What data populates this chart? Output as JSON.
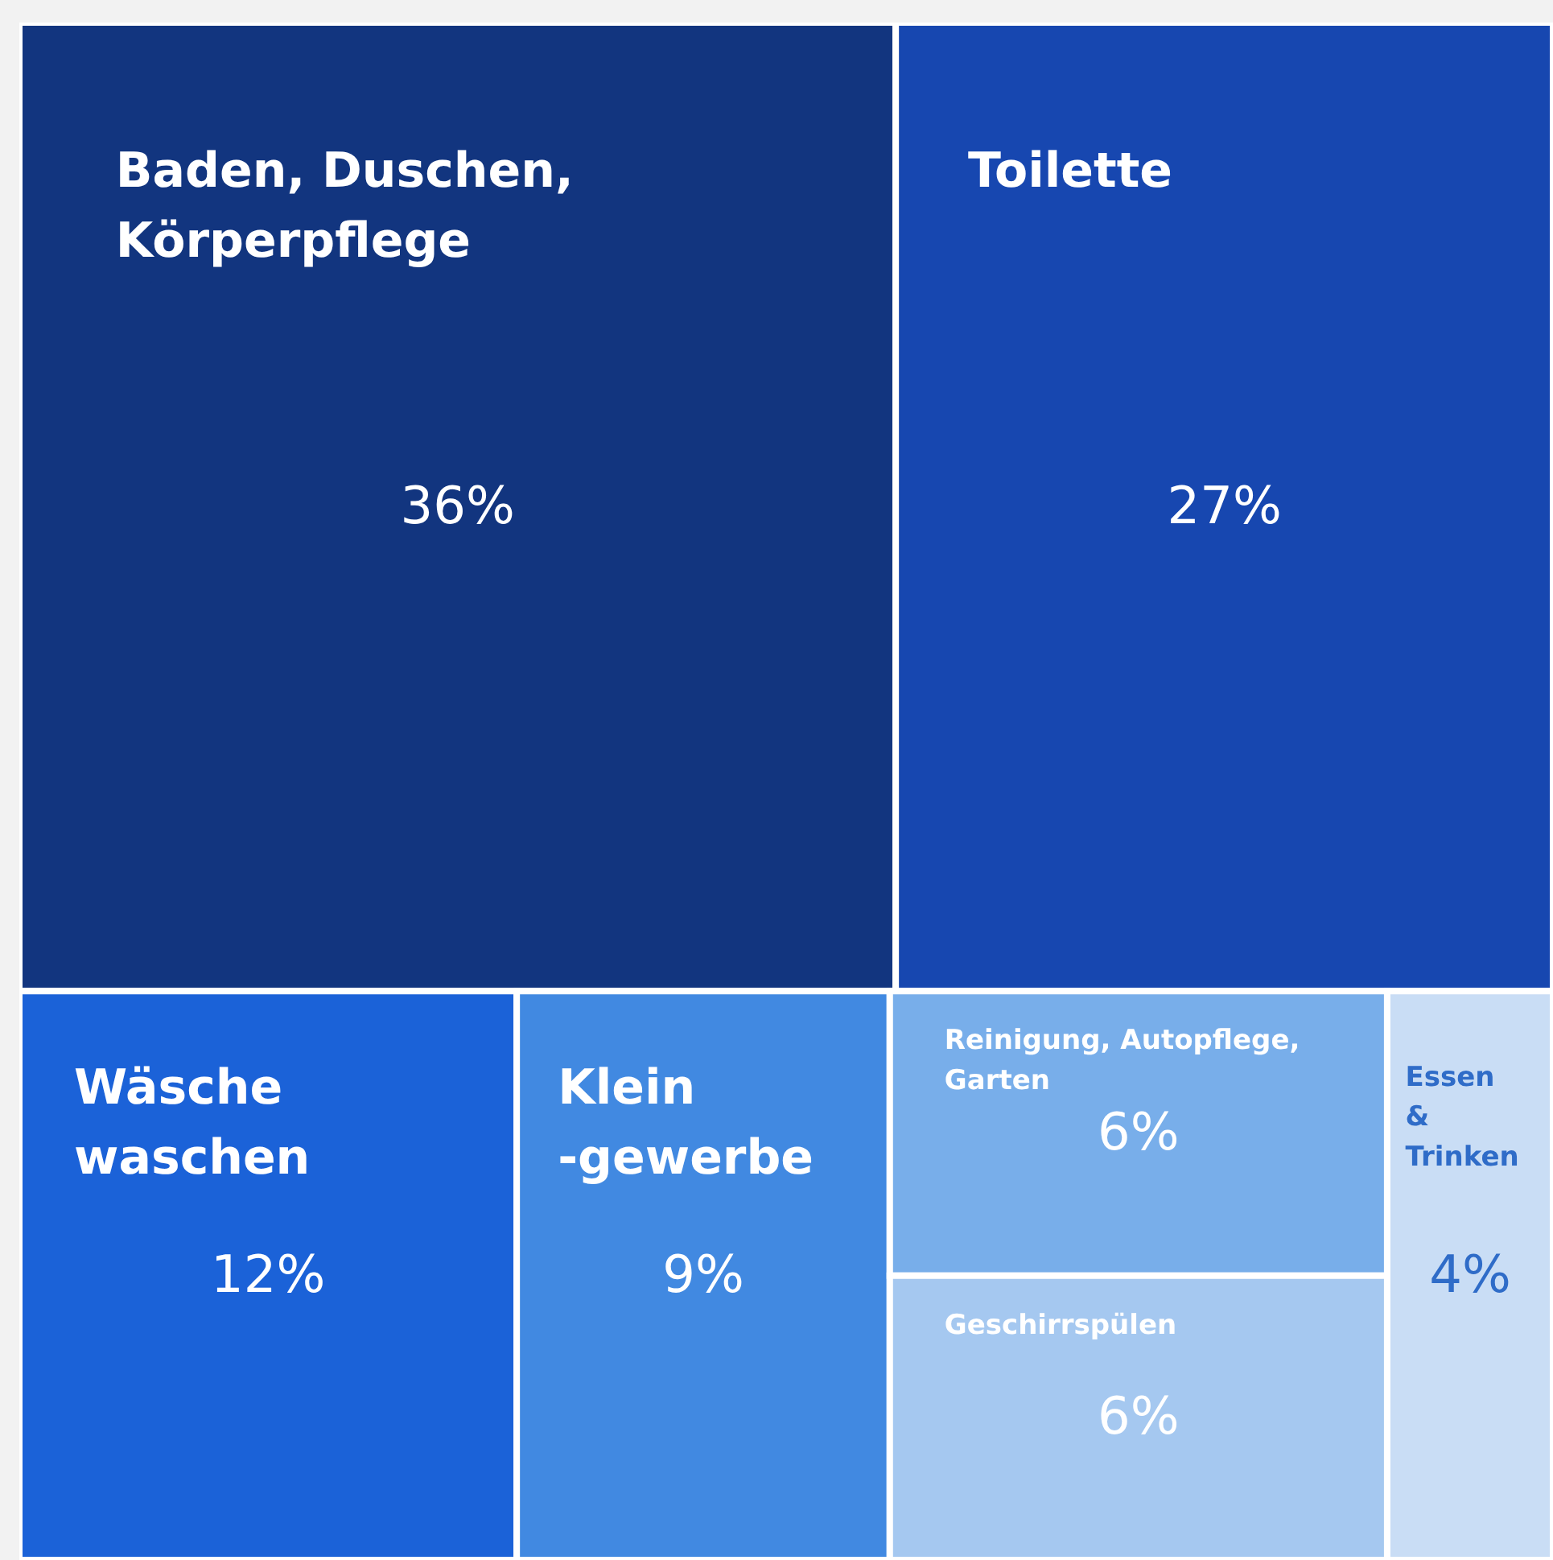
{
  "chart_data": {
    "type": "other",
    "categories": [
      "Baden, Duschen, Körperpflege",
      "Toilette",
      "Wäsche waschen",
      "Klein -gewerbe",
      "Reinigung, Autopflege, Garten",
      "Geschirrspülen",
      "Essen & Trinken"
    ],
    "values": [
      36,
      27,
      12,
      9,
      6,
      6,
      4
    ],
    "value_labels": [
      "36%",
      "27%",
      "12%",
      "9%",
      "6%",
      "6%",
      "4%"
    ],
    "colors": [
      "#12357f",
      "#1747b0",
      "#1b62d8",
      "#4189e1",
      "#78aeea",
      "#a5c8f0",
      "#c9ddf5"
    ]
  }
}
